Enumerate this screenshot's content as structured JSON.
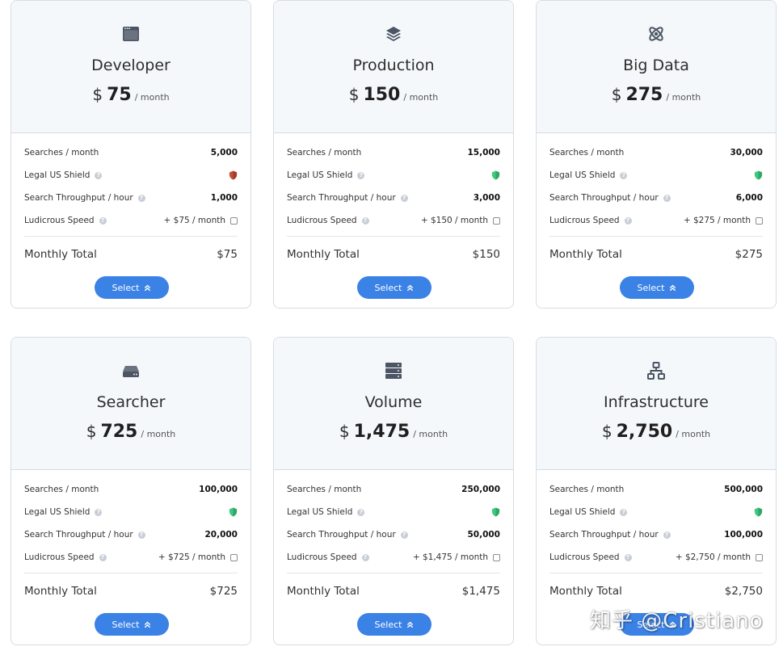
{
  "colors": {
    "accent": "#3b82e6",
    "header_bg": "#f5f8fb",
    "border": "#d7dce3",
    "shield_red": "#c0503a",
    "shield_green": "#3ec97e",
    "icon": "#4b5563"
  },
  "labels": {
    "searches": "Searches / month",
    "shield": "Legal US Shield",
    "throughput": "Search Throughput / hour",
    "ludicrous": "Ludicrous Speed",
    "total": "Monthly Total",
    "select": "Select",
    "currency": "$",
    "per": "/ month",
    "help": "?"
  },
  "plans": [
    {
      "icon": "browser-window-icon",
      "name": "Developer",
      "price": "75",
      "searches": "5,000",
      "shield": "red",
      "throughput": "1,000",
      "addon": "+ $75 / month",
      "total": "$75"
    },
    {
      "icon": "layers-icon",
      "name": "Production",
      "price": "150",
      "searches": "15,000",
      "shield": "green",
      "throughput": "3,000",
      "addon": "+ $150 / month",
      "total": "$150"
    },
    {
      "icon": "atom-icon",
      "name": "Big Data",
      "price": "275",
      "searches": "30,000",
      "shield": "green",
      "throughput": "6,000",
      "addon": "+ $275 / month",
      "total": "$275"
    },
    {
      "icon": "hard-drive-icon",
      "name": "Searcher",
      "price": "725",
      "searches": "100,000",
      "shield": "green",
      "throughput": "20,000",
      "addon": "+ $725 / month",
      "total": "$725"
    },
    {
      "icon": "server-icon",
      "name": "Volume",
      "price": "1,475",
      "searches": "250,000",
      "shield": "green",
      "throughput": "50,000",
      "addon": "+ $1,475 / month",
      "total": "$1,475"
    },
    {
      "icon": "network-icon",
      "name": "Infrastructure",
      "price": "2,750",
      "searches": "500,000",
      "shield": "green",
      "throughput": "100,000",
      "addon": "+ $2,750 / month",
      "total": "$2,750"
    }
  ],
  "watermark": "知乎 @Cristiano"
}
